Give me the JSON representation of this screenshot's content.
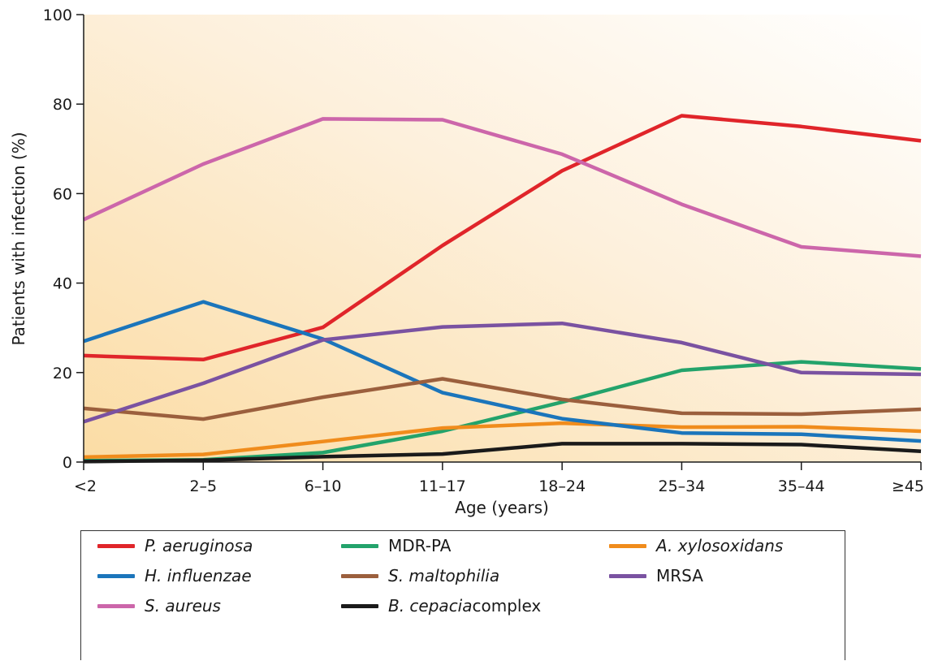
{
  "chart_data": {
    "type": "line",
    "xlabel": "Age (years)",
    "ylabel": "Patients with infection (%)",
    "categories": [
      "<2",
      "2–5",
      "6–10",
      "11–17",
      "18–24",
      "25–34",
      "35–44",
      "≥45"
    ],
    "ylim": [
      0,
      100
    ],
    "yticks": [
      0,
      20,
      40,
      60,
      80,
      100
    ],
    "grid": false,
    "legend_placement": "bottom",
    "series": [
      {
        "name": "P. aeruginosa",
        "color": "#e0252a",
        "italic": true,
        "values": [
          23.8,
          22.9,
          30.1,
          48.4,
          65.1,
          77.4,
          75.0,
          71.8
        ]
      },
      {
        "name": "MDR-PA",
        "color": "#23a36b",
        "italic": false,
        "values": [
          0.3,
          0.5,
          2.1,
          6.9,
          13.4,
          20.5,
          22.4,
          20.8
        ]
      },
      {
        "name": "A. xylosoxidans",
        "color": "#f08c1c",
        "italic": true,
        "values": [
          1.1,
          1.7,
          4.6,
          7.6,
          8.7,
          7.8,
          7.9,
          6.9
        ]
      },
      {
        "name": "H. influenzae",
        "color": "#1b75bb",
        "italic": true,
        "values": [
          27.0,
          35.8,
          27.5,
          15.5,
          9.7,
          6.5,
          6.2,
          4.7
        ]
      },
      {
        "name": "S. maltophilia",
        "color": "#9b5f3d",
        "italic": true,
        "values": [
          12.0,
          9.6,
          14.5,
          18.6,
          14.0,
          10.9,
          10.7,
          11.8
        ]
      },
      {
        "name": "MRSA",
        "color": "#7a52a1",
        "italic": false,
        "values": [
          9.0,
          17.6,
          27.3,
          30.2,
          31.0,
          26.7,
          20.0,
          19.6
        ]
      },
      {
        "name": "S. aureus",
        "color": "#cc66aa",
        "italic": true,
        "values": [
          54.2,
          66.6,
          76.7,
          76.5,
          68.8,
          57.6,
          48.1,
          46.0
        ]
      },
      {
        "name": "B. cepacia",
        "suffix": " complex",
        "color": "#1a1a1a",
        "italic": true,
        "values": [
          0.1,
          0.4,
          1.2,
          1.8,
          4.1,
          4.1,
          3.9,
          2.4
        ]
      }
    ],
    "legend_order": [
      0,
      1,
      2,
      3,
      4,
      5,
      6,
      7
    ]
  }
}
